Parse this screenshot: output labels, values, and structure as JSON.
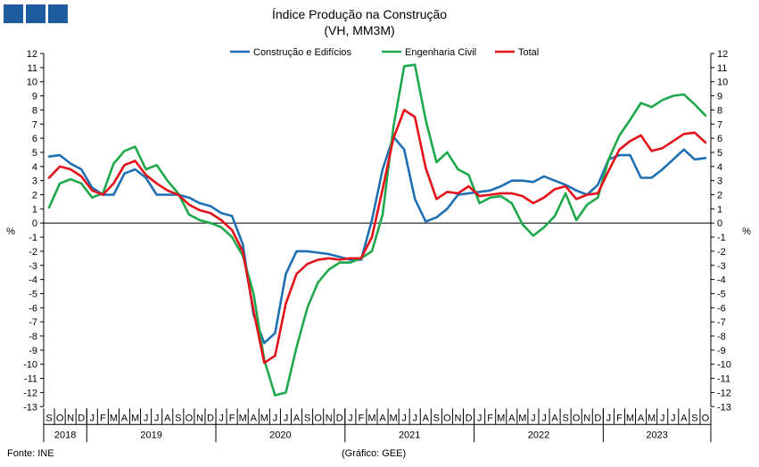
{
  "logo": {
    "color": "#1f5c9e",
    "icon": "brand-squares-icon"
  },
  "footer": {
    "source": "Fonte: INE",
    "credit": "(Gráfico: GEE)"
  },
  "chart_data": {
    "type": "line",
    "title": "Índice Produção na Construção",
    "subtitle": "(VH, MM3M)",
    "ylabel_left": "%",
    "ylabel_right": "%",
    "ylim": [
      -13,
      12
    ],
    "yticks": [
      12,
      11,
      10,
      9,
      8,
      7,
      6,
      5,
      4,
      3,
      2,
      1,
      0,
      -1,
      -2,
      -3,
      -4,
      -5,
      -6,
      -7,
      -8,
      -9,
      -10,
      -11,
      -12,
      -13
    ],
    "grid": false,
    "legend_position": "top-center",
    "x_months": [
      "S",
      "O",
      "N",
      "D",
      "J",
      "F",
      "M",
      "A",
      "M",
      "J",
      "J",
      "A",
      "S",
      "O",
      "N",
      "D",
      "J",
      "F",
      "M",
      "A",
      "M",
      "J",
      "J",
      "A",
      "S",
      "O",
      "N",
      "D",
      "J",
      "F",
      "M",
      "A",
      "M",
      "J",
      "J",
      "A",
      "S",
      "O",
      "N",
      "D",
      "J",
      "F",
      "M",
      "A",
      "M",
      "J",
      "J",
      "A",
      "S",
      "O",
      "N",
      "D",
      "J",
      "F",
      "M",
      "A",
      "M",
      "J",
      "J",
      "A",
      "S",
      "O"
    ],
    "years": [
      {
        "label": "2018",
        "start": 0,
        "end": 3
      },
      {
        "label": "2019",
        "start": 4,
        "end": 15
      },
      {
        "label": "2020",
        "start": 16,
        "end": 27
      },
      {
        "label": "2021",
        "start": 28,
        "end": 39
      },
      {
        "label": "2022",
        "start": 40,
        "end": 51
      },
      {
        "label": "2023",
        "start": 52,
        "end": 61
      }
    ],
    "series": [
      {
        "name": "Construção e Edifícios",
        "color": "#1f6fb4",
        "values": [
          4.7,
          4.8,
          4.2,
          3.8,
          2.5,
          2.0,
          2.0,
          3.5,
          3.8,
          3.2,
          2.0,
          2.0,
          2.0,
          1.8,
          1.4,
          1.2,
          0.7,
          0.5,
          -1.5,
          -6.5,
          -8.5,
          -7.8,
          -3.6,
          -2.0,
          -2.0,
          -2.1,
          -2.2,
          -2.4,
          -2.6,
          -2.6,
          0.2,
          3.8,
          6.1,
          5.2,
          1.7,
          0.1,
          0.4,
          1.0,
          2.0,
          2.1,
          2.2,
          2.3,
          2.6,
          3.0,
          3.0,
          2.9,
          3.3,
          3.0,
          2.7,
          2.3,
          2.0,
          2.7,
          4.5,
          4.8,
          4.8,
          3.2,
          3.2,
          3.8,
          4.5,
          5.2,
          4.5,
          4.6
        ]
      },
      {
        "name": "Engenharia Civil",
        "color": "#1fa84c",
        "values": [
          1.1,
          2.8,
          3.1,
          2.8,
          1.8,
          2.1,
          4.2,
          5.1,
          5.4,
          3.8,
          4.1,
          3.0,
          2.1,
          0.6,
          0.2,
          0.0,
          -0.3,
          -1.0,
          -2.3,
          -5.0,
          -9.7,
          -12.2,
          -12.0,
          -8.8,
          -6.0,
          -4.2,
          -3.3,
          -2.8,
          -2.8,
          -2.5,
          -2.0,
          0.6,
          6.8,
          11.1,
          11.2,
          7.3,
          4.3,
          5.0,
          3.8,
          3.4,
          1.4,
          1.8,
          1.9,
          1.4,
          -0.1,
          -0.9,
          -0.3,
          0.5,
          2.1,
          0.2,
          1.3,
          1.8,
          4.5,
          6.2,
          7.3,
          8.5,
          8.2,
          8.7,
          9.0,
          9.1,
          8.4,
          7.6
        ]
      },
      {
        "name": "Total",
        "color": "#e3121b",
        "values": [
          3.2,
          4.0,
          3.8,
          3.3,
          2.3,
          2.0,
          2.8,
          4.1,
          4.4,
          3.4,
          2.8,
          2.3,
          2.0,
          1.3,
          0.9,
          0.7,
          0.2,
          -0.5,
          -2.0,
          -6.2,
          -9.9,
          -9.4,
          -5.7,
          -3.6,
          -2.9,
          -2.6,
          -2.5,
          -2.6,
          -2.5,
          -2.5,
          -1.0,
          2.4,
          6.0,
          8.0,
          7.5,
          3.9,
          1.7,
          2.2,
          2.1,
          2.6,
          1.9,
          2.0,
          2.1,
          2.1,
          1.9,
          1.4,
          1.8,
          2.4,
          2.6,
          1.7,
          2.0,
          2.1,
          3.7,
          5.2,
          5.8,
          6.2,
          5.1,
          5.3,
          5.8,
          6.3,
          6.4,
          5.7
        ]
      }
    ]
  }
}
